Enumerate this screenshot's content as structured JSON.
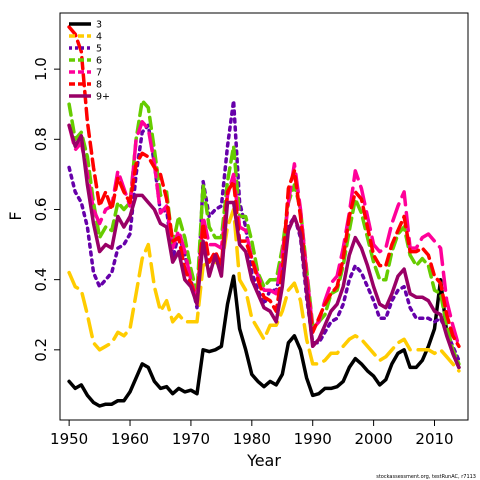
{
  "chart_data": {
    "type": "line",
    "title": "",
    "xlabel": "Year",
    "ylabel": "F",
    "xlim": [
      1948.5,
      2015.5
    ],
    "ylim": [
      0.0,
      1.16
    ],
    "x_ticks": [
      1950,
      1960,
      1970,
      1980,
      1990,
      2000,
      2010
    ],
    "y_ticks": [
      0.2,
      0.4,
      0.6,
      0.8,
      1.0
    ],
    "y_tick_labels": [
      "0.2",
      "0.4",
      "0.6",
      "0.8",
      "1.0"
    ],
    "grid": false,
    "legend_position": "top-left",
    "x": [
      1950,
      1951,
      1952,
      1953,
      1954,
      1955,
      1956,
      1957,
      1958,
      1959,
      1960,
      1961,
      1962,
      1963,
      1964,
      1965,
      1966,
      1967,
      1968,
      1969,
      1970,
      1971,
      1972,
      1973,
      1974,
      1975,
      1976,
      1977,
      1978,
      1979,
      1980,
      1981,
      1982,
      1983,
      1984,
      1985,
      1986,
      1987,
      1988,
      1989,
      1990,
      1991,
      1992,
      1993,
      1994,
      1995,
      1996,
      1997,
      1998,
      1999,
      2000,
      2001,
      2002,
      2003,
      2004,
      2005,
      2006,
      2007,
      2008,
      2009,
      2010,
      2011,
      2012,
      2013,
      2014
    ],
    "series": [
      {
        "name": "3",
        "color": "#000000",
        "dash": "solid",
        "values": [
          0.11,
          0.09,
          0.1,
          0.07,
          0.05,
          0.04,
          0.045,
          0.045,
          0.055,
          0.055,
          0.08,
          0.12,
          0.16,
          0.15,
          0.11,
          0.09,
          0.095,
          0.075,
          0.09,
          0.08,
          0.085,
          0.075,
          0.2,
          0.195,
          0.2,
          0.21,
          0.33,
          0.41,
          0.26,
          0.2,
          0.13,
          0.11,
          0.095,
          0.11,
          0.1,
          0.13,
          0.22,
          0.24,
          0.2,
          0.12,
          0.07,
          0.075,
          0.09,
          0.09,
          0.095,
          0.11,
          0.15,
          0.175,
          0.16,
          0.14,
          0.125,
          0.1,
          0.115,
          0.16,
          0.19,
          0.2,
          0.15,
          0.15,
          0.17,
          0.21,
          0.26,
          0.4,
          0.25,
          0.19,
          0.15
        ]
      },
      {
        "name": "4",
        "color": "#FFCC00",
        "dash": "longdash",
        "values": [
          0.42,
          0.38,
          0.37,
          0.3,
          0.22,
          0.2,
          0.21,
          0.22,
          0.25,
          0.24,
          0.26,
          0.36,
          0.46,
          0.5,
          0.38,
          0.31,
          0.34,
          0.28,
          0.3,
          0.28,
          0.28,
          0.28,
          0.44,
          0.45,
          0.45,
          0.44,
          0.55,
          0.6,
          0.4,
          0.37,
          0.29,
          0.26,
          0.23,
          0.27,
          0.27,
          0.31,
          0.37,
          0.39,
          0.34,
          0.23,
          0.16,
          0.16,
          0.17,
          0.19,
          0.19,
          0.21,
          0.23,
          0.24,
          0.23,
          0.21,
          0.19,
          0.17,
          0.18,
          0.2,
          0.22,
          0.23,
          0.2,
          0.2,
          0.2,
          0.2,
          0.19,
          0.2,
          0.18,
          0.16,
          0.14
        ]
      },
      {
        "name": "5",
        "color": "#6600AA",
        "dash": "dotted",
        "values": [
          0.72,
          0.65,
          0.62,
          0.55,
          0.42,
          0.38,
          0.4,
          0.42,
          0.49,
          0.5,
          0.53,
          0.7,
          0.82,
          0.84,
          0.73,
          0.59,
          0.6,
          0.46,
          0.53,
          0.47,
          0.4,
          0.32,
          0.68,
          0.58,
          0.6,
          0.61,
          0.78,
          0.91,
          0.62,
          0.55,
          0.42,
          0.37,
          0.33,
          0.37,
          0.37,
          0.44,
          0.55,
          0.58,
          0.52,
          0.35,
          0.22,
          0.22,
          0.25,
          0.28,
          0.29,
          0.33,
          0.4,
          0.44,
          0.42,
          0.38,
          0.34,
          0.29,
          0.29,
          0.34,
          0.37,
          0.38,
          0.32,
          0.29,
          0.29,
          0.29,
          0.28,
          0.29,
          0.25,
          0.21,
          0.17
        ]
      },
      {
        "name": "6",
        "color": "#66CC00",
        "dash": "dashed",
        "values": [
          0.9,
          0.8,
          0.82,
          0.75,
          0.62,
          0.52,
          0.55,
          0.54,
          0.62,
          0.6,
          0.62,
          0.8,
          0.91,
          0.89,
          0.77,
          0.64,
          0.65,
          0.5,
          0.58,
          0.52,
          0.43,
          0.36,
          0.67,
          0.55,
          0.52,
          0.52,
          0.68,
          0.78,
          0.58,
          0.58,
          0.51,
          0.42,
          0.38,
          0.4,
          0.4,
          0.49,
          0.62,
          0.67,
          0.6,
          0.43,
          0.27,
          0.28,
          0.3,
          0.36,
          0.37,
          0.44,
          0.54,
          0.63,
          0.59,
          0.52,
          0.45,
          0.4,
          0.4,
          0.48,
          0.53,
          0.55,
          0.47,
          0.44,
          0.46,
          0.44,
          0.37,
          0.36,
          0.27,
          0.2,
          0.16
        ]
      },
      {
        "name": "7",
        "color": "#FF0099",
        "dash": "longdash",
        "values": [
          0.84,
          0.77,
          0.79,
          0.7,
          0.6,
          0.56,
          0.6,
          0.61,
          0.71,
          0.66,
          0.61,
          0.8,
          0.85,
          0.83,
          0.73,
          0.59,
          0.61,
          0.49,
          0.54,
          0.48,
          0.4,
          0.34,
          0.58,
          0.5,
          0.5,
          0.49,
          0.64,
          0.7,
          0.55,
          0.54,
          0.46,
          0.41,
          0.37,
          0.37,
          0.36,
          0.47,
          0.62,
          0.73,
          0.6,
          0.42,
          0.26,
          0.28,
          0.34,
          0.39,
          0.41,
          0.49,
          0.59,
          0.71,
          0.66,
          0.58,
          0.5,
          0.48,
          0.49,
          0.56,
          0.61,
          0.65,
          0.49,
          0.49,
          0.52,
          0.53,
          0.51,
          0.49,
          0.34,
          0.27,
          0.21
        ]
      },
      {
        "name": "8",
        "color": "#FF0000",
        "dash": "dashed",
        "values": [
          1.12,
          1.1,
          1.05,
          0.85,
          0.72,
          0.61,
          0.65,
          0.6,
          0.69,
          0.65,
          0.62,
          0.73,
          0.76,
          0.75,
          0.72,
          0.7,
          0.63,
          0.51,
          0.52,
          0.43,
          0.39,
          0.34,
          0.56,
          0.45,
          0.48,
          0.44,
          0.65,
          0.68,
          0.51,
          0.51,
          0.46,
          0.4,
          0.35,
          0.34,
          0.31,
          0.42,
          0.66,
          0.71,
          0.58,
          0.39,
          0.25,
          0.29,
          0.33,
          0.36,
          0.38,
          0.46,
          0.58,
          0.65,
          0.63,
          0.55,
          0.47,
          0.44,
          0.44,
          0.5,
          0.54,
          0.58,
          0.48,
          0.48,
          0.49,
          0.47,
          0.41,
          0.39,
          0.3,
          0.24,
          0.21
        ]
      },
      {
        "name": "9+",
        "color": "#990066",
        "dash": "solid",
        "values": [
          0.84,
          0.78,
          0.81,
          0.67,
          0.56,
          0.48,
          0.5,
          0.49,
          0.58,
          0.55,
          0.58,
          0.64,
          0.64,
          0.62,
          0.6,
          0.56,
          0.55,
          0.45,
          0.48,
          0.4,
          0.38,
          0.33,
          0.51,
          0.41,
          0.47,
          0.41,
          0.62,
          0.62,
          0.5,
          0.48,
          0.4,
          0.36,
          0.32,
          0.31,
          0.28,
          0.38,
          0.54,
          0.58,
          0.53,
          0.37,
          0.21,
          0.23,
          0.27,
          0.31,
          0.33,
          0.38,
          0.47,
          0.52,
          0.49,
          0.44,
          0.38,
          0.33,
          0.32,
          0.36,
          0.41,
          0.43,
          0.36,
          0.35,
          0.35,
          0.34,
          0.31,
          0.3,
          0.24,
          0.19,
          0.15
        ]
      }
    ],
    "footnote": "stockassessment.org, testRunAC, r7113"
  }
}
